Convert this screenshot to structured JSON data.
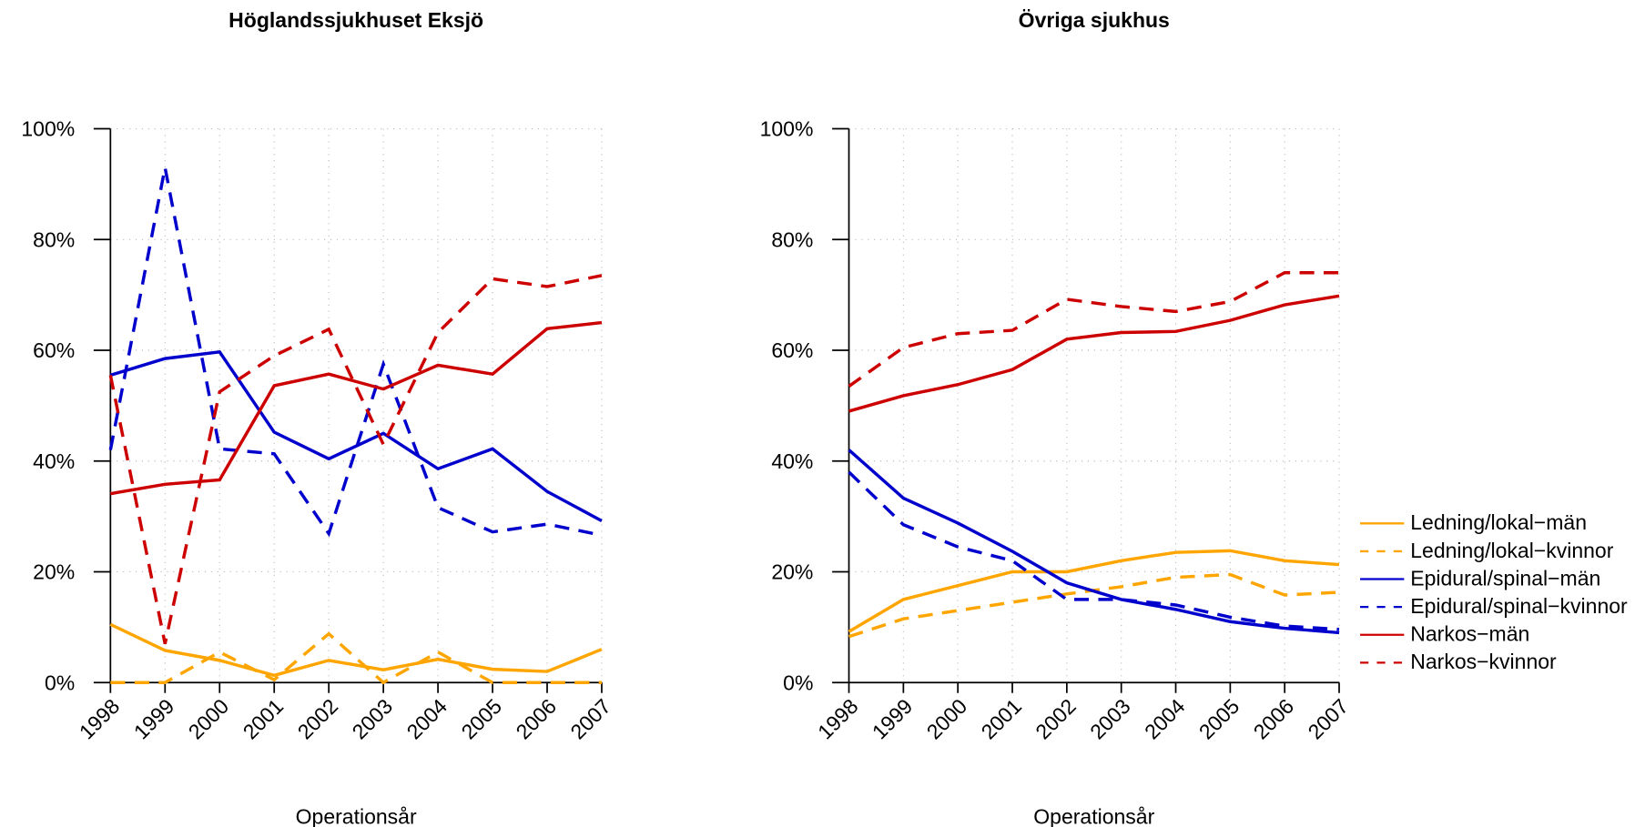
{
  "chart_data": [
    {
      "type": "line",
      "title": "Höglandssjukhuset Eksjö",
      "xlabel": "Operationsår",
      "x": [
        1998,
        1999,
        2000,
        2001,
        2002,
        2003,
        2004,
        2005,
        2006,
        2007
      ],
      "xlim": [
        1998,
        2007
      ],
      "xticks": [
        1998,
        1999,
        2000,
        2001,
        2002,
        2003,
        2004,
        2005,
        2006,
        2007
      ],
      "ylim": [
        0,
        100
      ],
      "yticks": [
        {
          "value": 0,
          "label": "0%"
        },
        {
          "value": 20,
          "label": "20%"
        },
        {
          "value": 40,
          "label": "40%"
        },
        {
          "value": 60,
          "label": "60%"
        },
        {
          "value": 80,
          "label": "80%"
        },
        {
          "value": 100,
          "label": "100%"
        }
      ],
      "grid": true,
      "series": [
        {
          "name": "Ledning/lokal−män",
          "color": "#FFA500",
          "dashed": false,
          "values": [
            10.5,
            5.8,
            4,
            1.3,
            4,
            2.3,
            4.2,
            2.4,
            2,
            6
          ]
        },
        {
          "name": "Ledning/lokal−kvinnor",
          "color": "#FFA500",
          "dashed": true,
          "values": [
            0,
            0,
            5.5,
            0.5,
            8.8,
            0,
            5.5,
            0,
            0,
            0
          ]
        },
        {
          "name": "Epidural/spinal−män",
          "color": "#0000CD",
          "dashed": false,
          "values": [
            55.5,
            58.5,
            59.7,
            45.2,
            40.4,
            45,
            38.6,
            42.2,
            34.5,
            29.2
          ]
        },
        {
          "name": "Epidural/spinal−kvinnor",
          "color": "#0000CD",
          "dashed": true,
          "values": [
            42,
            93,
            42.2,
            41.3,
            26.9,
            57.5,
            31.6,
            27.2,
            28.6,
            26.6
          ]
        },
        {
          "name": "Narkos−män",
          "color": "#CD0000",
          "dashed": false,
          "values": [
            34.1,
            35.8,
            36.6,
            53.6,
            55.7,
            53,
            57.3,
            55.7,
            63.9,
            65
          ]
        },
        {
          "name": "Narkos−kvinnor",
          "color": "#CD0000",
          "dashed": true,
          "values": [
            55.5,
            7,
            52.5,
            59,
            63.8,
            43,
            63.2,
            72.9,
            71.5,
            73.5
          ]
        }
      ]
    },
    {
      "type": "line",
      "title": "Övriga sjukhus",
      "xlabel": "Operationsår",
      "x": [
        1998,
        1999,
        2000,
        2001,
        2002,
        2003,
        2004,
        2005,
        2006,
        2007
      ],
      "xlim": [
        1998,
        2007
      ],
      "xticks": [
        1998,
        1999,
        2000,
        2001,
        2002,
        2003,
        2004,
        2005,
        2006,
        2007
      ],
      "ylim": [
        0,
        100
      ],
      "yticks": [
        {
          "value": 0,
          "label": "0%"
        },
        {
          "value": 20,
          "label": "20%"
        },
        {
          "value": 40,
          "label": "40%"
        },
        {
          "value": 60,
          "label": "60%"
        },
        {
          "value": 80,
          "label": "80%"
        },
        {
          "value": 100,
          "label": "100%"
        }
      ],
      "grid": true,
      "legend": "right",
      "series": [
        {
          "name": "Ledning/lokal−män",
          "color": "#FFA500",
          "dashed": false,
          "values": [
            9.2,
            15,
            17.5,
            20,
            20,
            22,
            23.5,
            23.8,
            22,
            21.3
          ]
        },
        {
          "name": "Ledning/lokal−kvinnor",
          "color": "#FFA500",
          "dashed": true,
          "values": [
            8.3,
            11.5,
            13,
            14.5,
            16,
            17.3,
            19,
            19.5,
            15.8,
            16.3
          ]
        },
        {
          "name": "Epidural/spinal−män",
          "color": "#0000CD",
          "dashed": false,
          "values": [
            42,
            33.3,
            28.8,
            23.7,
            18,
            15,
            13.2,
            11,
            9.8,
            9
          ]
        },
        {
          "name": "Epidural/spinal−kvinnor",
          "color": "#0000CD",
          "dashed": true,
          "values": [
            38,
            28.5,
            24.5,
            22,
            15,
            15,
            14,
            11.8,
            10.2,
            9.6
          ]
        },
        {
          "name": "Narkos−män",
          "color": "#CD0000",
          "dashed": false,
          "values": [
            49,
            51.8,
            53.8,
            56.5,
            62,
            63.2,
            63.4,
            65.4,
            68.2,
            69.8
          ]
        },
        {
          "name": "Narkos−kvinnor",
          "color": "#CD0000",
          "dashed": true,
          "values": [
            53.5,
            60.5,
            63,
            63.6,
            69.2,
            67.9,
            67,
            68.8,
            74,
            74
          ]
        }
      ]
    }
  ]
}
